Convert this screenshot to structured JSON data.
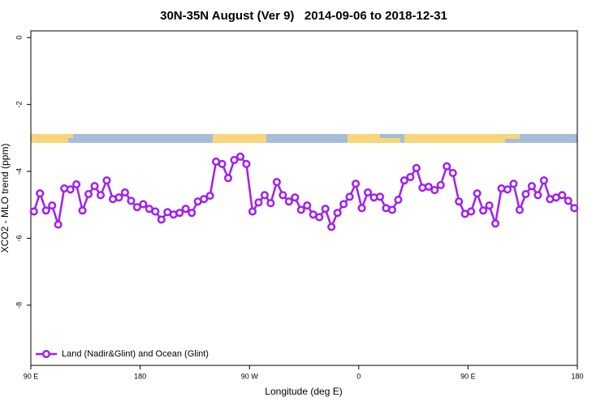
{
  "chart_data": {
    "type": "line",
    "title": "30N-35N August (Ver 9)   2014-09-06 to 2018-12-31",
    "xlabel": "Longitude (deg E)",
    "ylabel": "XCO2 - MLO trend (ppm)",
    "x": [
      92.5,
      97.5,
      102.5,
      107.5,
      112.5,
      117.5,
      122.5,
      127.5,
      132.5,
      137.5,
      142.5,
      147.5,
      152.5,
      157.5,
      162.5,
      167.5,
      172.5,
      177.5,
      182.5,
      187.5,
      192.5,
      197.5,
      202.5,
      207.5,
      212.5,
      217.5,
      222.5,
      227.5,
      232.5,
      237.5,
      242.5,
      247.5,
      252.5,
      257.5,
      262.5,
      267.5,
      272.5,
      277.5,
      282.5,
      287.5,
      292.5,
      297.5,
      302.5,
      307.5,
      312.5,
      317.5,
      322.5,
      327.5,
      332.5,
      337.5,
      342.5,
      347.5,
      352.5,
      357.5,
      362.5,
      367.5,
      372.5,
      377.5,
      382.5,
      387.5,
      392.5,
      397.5,
      402.5,
      407.5,
      412.5,
      417.5,
      422.5,
      427.5,
      432.5,
      437.5,
      442.5,
      447.5,
      452.5,
      457.5,
      462.5,
      467.5,
      472.5,
      477.5,
      482.5,
      487.5,
      492.5,
      497.5,
      502.5,
      507.5,
      512.5,
      517.5,
      522.5,
      527.5,
      532.5,
      537.5
    ],
    "series": [
      {
        "name": "Land (Nadir&Glint) and Ocean (Glint)",
        "color": "#a020f0",
        "values": [
          -5.2,
          -4.66,
          -5.17,
          -5.02,
          -5.59,
          -4.51,
          -4.54,
          -4.39,
          -5.17,
          -4.68,
          -4.44,
          -4.71,
          -4.27,
          -4.83,
          -4.78,
          -4.63,
          -4.88,
          -5.07,
          -4.98,
          -5.12,
          -5.2,
          -5.44,
          -5.22,
          -5.29,
          -5.24,
          -5.12,
          -5.24,
          -4.9,
          -4.83,
          -4.73,
          -3.71,
          -3.78,
          -4.2,
          -3.66,
          -3.56,
          -3.78,
          -5.2,
          -4.93,
          -4.71,
          -4.95,
          -4.32,
          -4.71,
          -4.9,
          -4.78,
          -5.15,
          -5.02,
          -5.29,
          -5.37,
          -5.12,
          -5.66,
          -5.24,
          -4.98,
          -4.76,
          -4.37,
          -5.1,
          -4.63,
          -4.78,
          -4.76,
          -5.1,
          -5.15,
          -4.85,
          -4.27,
          -4.17,
          -3.9,
          -4.49,
          -4.46,
          -4.56,
          -4.41,
          -3.85,
          -4.05,
          -4.9,
          -5.27,
          -5.2,
          -4.66,
          -5.17,
          -5.02,
          -5.56,
          -4.51,
          -4.54,
          -4.37,
          -5.15,
          -4.68,
          -4.44,
          -4.71,
          -4.27,
          -4.83,
          -4.78,
          -4.71,
          -4.88,
          -5.1
        ]
      }
    ],
    "xlim": [
      90,
      540
    ],
    "xticks": [
      {
        "value": 90,
        "label": "90 E"
      },
      180,
      {
        "value": 270,
        "label": "90 W"
      },
      {
        "value": 360,
        "label": "0"
      },
      {
        "value": 450,
        "label": "90 E"
      },
      {
        "value": 540,
        "label": "180"
      }
    ],
    "ylim": [
      -9.8,
      0.2
    ],
    "yticks": [
      0,
      -2,
      -4,
      -6,
      -8
    ],
    "legend": "bottomleft"
  }
}
